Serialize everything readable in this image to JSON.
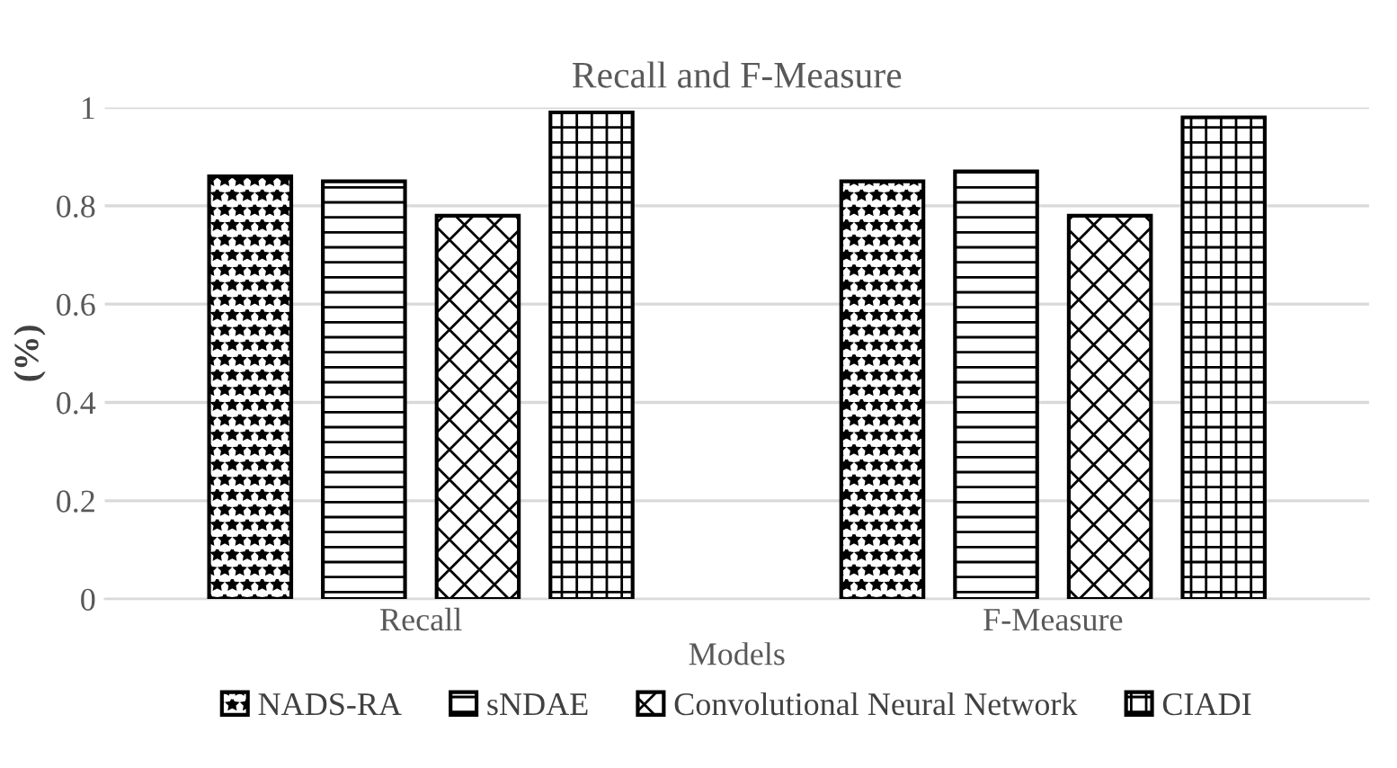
{
  "chart_data": {
    "type": "bar",
    "title": "Recall and F-Measure",
    "xlabel": "Models",
    "ylabel": "(%)",
    "categories": [
      "Recall",
      "F-Measure"
    ],
    "series": [
      {
        "name": "NADS-RA",
        "color": "#000000",
        "values": [
          0.86,
          0.85
        ]
      },
      {
        "name": "sNDAE",
        "color": "#000000",
        "values": [
          0.85,
          0.87
        ]
      },
      {
        "name": "Convolutional Neural Network",
        "color": "#000000",
        "values": [
          0.78,
          0.78
        ]
      },
      {
        "name": "CIADI",
        "color": "#000000",
        "values": [
          0.99,
          0.98
        ]
      }
    ],
    "ylim": [
      0,
      1
    ],
    "yticks": [
      0,
      0.2,
      0.4,
      0.6,
      0.8,
      1
    ],
    "grid": "y",
    "legend": "bottom"
  }
}
